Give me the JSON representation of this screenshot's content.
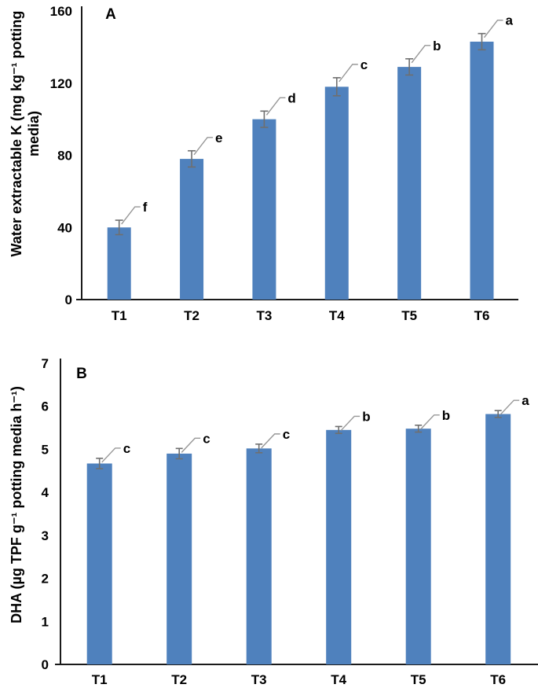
{
  "figure": {
    "colors": {
      "bar_fill": "#4F81BD",
      "error_bar": "#6F6F6F",
      "leader_line": "#979797",
      "axis": "#1A1A1A",
      "text": "#000000"
    }
  },
  "chart_data": [
    {
      "type": "bar",
      "panel_label": "A",
      "title": "",
      "xlabel": "",
      "ylabel": "Water extractable K (mg kg⁻¹ potting media)",
      "ylabel_lines": [
        "Water extractable K (mg kg⁻¹ potting",
        "media)"
      ],
      "categories": [
        "T1",
        "T2",
        "T3",
        "T4",
        "T5",
        "T6"
      ],
      "values": [
        40,
        78,
        100,
        118,
        129,
        143
      ],
      "errors": [
        4,
        4.5,
        4.5,
        5,
        4.5,
        4.5
      ],
      "sig_letters": [
        "f",
        "e",
        "d",
        "c",
        "b",
        "a"
      ],
      "yticks": [
        0,
        40,
        80,
        120,
        160
      ],
      "ylim": [
        0,
        160
      ],
      "grid": false,
      "legend": false
    },
    {
      "type": "bar",
      "panel_label": "B",
      "title": "",
      "xlabel": "",
      "ylabel": "DHA (µg TPF g⁻¹ potting media h⁻¹)",
      "ylabel_lines": [
        "DHA (µg TPF g⁻¹ potting media h⁻¹)"
      ],
      "categories": [
        "T1",
        "T2",
        "T3",
        "T4",
        "T5",
        "T6"
      ],
      "values": [
        4.67,
        4.9,
        5.02,
        5.45,
        5.48,
        5.82
      ],
      "errors": [
        0.12,
        0.12,
        0.1,
        0.08,
        0.08,
        0.08
      ],
      "sig_letters": [
        "c",
        "c",
        "c",
        "b",
        "b",
        "a"
      ],
      "yticks": [
        0,
        1,
        2,
        3,
        4,
        5,
        6,
        7
      ],
      "ylim": [
        0,
        7
      ],
      "grid": false,
      "legend": false
    }
  ]
}
